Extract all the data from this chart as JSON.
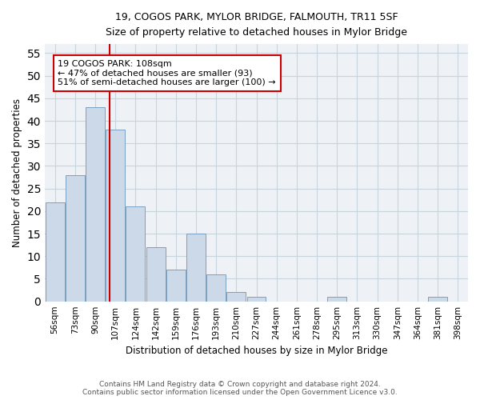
{
  "title": "19, COGOS PARK, MYLOR BRIDGE, FALMOUTH, TR11 5SF",
  "subtitle": "Size of property relative to detached houses in Mylor Bridge",
  "xlabel": "Distribution of detached houses by size in Mylor Bridge",
  "ylabel": "Number of detached properties",
  "categories": [
    "56sqm",
    "73sqm",
    "90sqm",
    "107sqm",
    "124sqm",
    "142sqm",
    "159sqm",
    "176sqm",
    "193sqm",
    "210sqm",
    "227sqm",
    "244sqm",
    "261sqm",
    "278sqm",
    "295sqm",
    "313sqm",
    "330sqm",
    "347sqm",
    "364sqm",
    "381sqm",
    "398sqm"
  ],
  "values": [
    22,
    28,
    43,
    38,
    21,
    12,
    7,
    15,
    6,
    2,
    1,
    0,
    0,
    0,
    1,
    0,
    0,
    0,
    0,
    1,
    0
  ],
  "bar_color": "#ccd9e8",
  "bar_edge_color": "#7aa0c0",
  "grid_color": "#c8d4dc",
  "background_color": "#eef2f7",
  "marker_line_color": "#cc0000",
  "annotation_text": "19 COGOS PARK: 108sqm\n← 47% of detached houses are smaller (93)\n51% of semi-detached houses are larger (100) →",
  "annotation_box_color": "#ffffff",
  "annotation_box_edge": "#cc0000",
  "ylim": [
    0,
    57
  ],
  "yticks": [
    0,
    5,
    10,
    15,
    20,
    25,
    30,
    35,
    40,
    45,
    50,
    55
  ],
  "footer_line1": "Contains HM Land Registry data © Crown copyright and database right 2024.",
  "footer_line2": "Contains public sector information licensed under the Open Government Licence v3.0."
}
